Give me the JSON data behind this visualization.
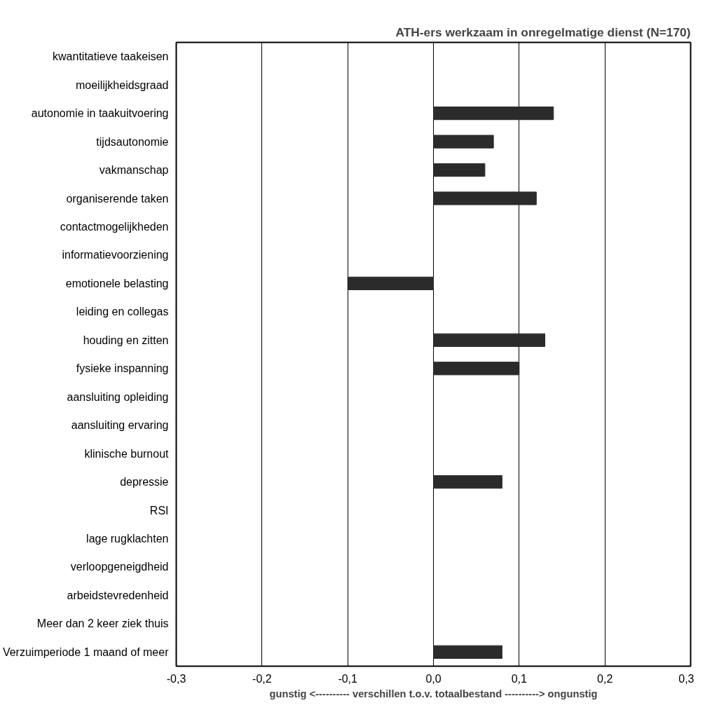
{
  "chart_data": {
    "type": "bar",
    "orientation": "horizontal",
    "title": "ATH-ers werkzaam in onregelmatige dienst (N=170)",
    "xlabel": "gunstig <---------- verschillen t.o.v. totaalbestand ----------> ongunstig",
    "categories": [
      "kwantitatieve taakeisen",
      "moeilijkheidsgraad",
      "autonomie in taakuitvoering",
      "tijdsautonomie",
      "vakmanschap",
      "organiserende taken",
      "contactmogelijkheden",
      "informatievoorziening",
      "emotionele belasting",
      "leiding en collegas",
      "houding en zitten",
      "fysieke inspanning",
      "aansluiting opleiding",
      "aansluiting ervaring",
      "klinische burnout",
      "depressie",
      "RSI",
      "lage rugklachten",
      "verloopgeneigdheid",
      "arbeidstevredenheid",
      "Meer dan 2 keer ziek thuis",
      "Verzuimperiode 1 maand of meer"
    ],
    "values": [
      null,
      null,
      0.14,
      0.07,
      0.06,
      0.12,
      null,
      null,
      -0.1,
      null,
      0.13,
      0.1,
      null,
      null,
      null,
      0.08,
      null,
      null,
      null,
      null,
      null,
      0.08
    ],
    "color": "#2b2b2b",
    "xlim": [
      -0.3,
      0.3
    ],
    "xticks": [
      {
        "value": -0.3,
        "label": "-0,3"
      },
      {
        "value": -0.2,
        "label": "-0,2"
      },
      {
        "value": -0.1,
        "label": "-0,1"
      },
      {
        "value": 0,
        "label": "0,0"
      },
      {
        "value": 0.1,
        "label": "0,1"
      },
      {
        "value": 0.2,
        "label": "0,2"
      },
      {
        "value": 0.3,
        "label": "0,3"
      }
    ],
    "grid": "x"
  }
}
